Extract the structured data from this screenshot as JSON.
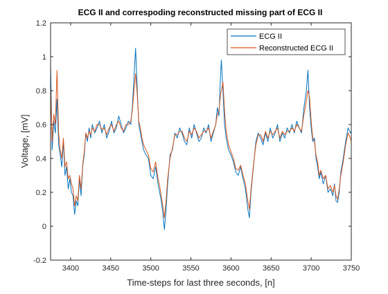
{
  "chart_data": {
    "type": "line",
    "title": "ECG II and correspoding reconstructed missing part of ECG II",
    "xlabel": "Time-steps for last three seconds, [n]",
    "ylabel": "Voltage, [mV]",
    "xlim": [
      3375,
      3750
    ],
    "ylim": [
      -0.2,
      1.2
    ],
    "xticks": [
      3400,
      3450,
      3500,
      3550,
      3600,
      3650,
      3700,
      3750
    ],
    "yticks": [
      -0.2,
      0,
      0.2,
      0.4,
      0.6,
      0.8,
      1,
      1.2
    ],
    "xtick_labels": [
      "3400",
      "3450",
      "3500",
      "3550",
      "3600",
      "3650",
      "3700",
      "3750"
    ],
    "ytick_labels": [
      "-0.2",
      "0",
      "0.2",
      "0.4",
      "0.6",
      "0.8",
      "1",
      "1.2"
    ],
    "grid": false,
    "legend_position": "top-right",
    "series": [
      {
        "name": "ECG II",
        "color": "#0072BD",
        "x": [
          3375,
          3377,
          3379,
          3381,
          3383,
          3385,
          3387,
          3389,
          3391,
          3393,
          3395,
          3397,
          3399,
          3401,
          3403,
          3405,
          3407,
          3409,
          3411,
          3413,
          3415,
          3417,
          3419,
          3421,
          3423,
          3425,
          3427,
          3430,
          3433,
          3436,
          3439,
          3442,
          3445,
          3448,
          3451,
          3454,
          3457,
          3460,
          3463,
          3466,
          3469,
          3472,
          3475,
          3477,
          3479,
          3481,
          3483,
          3485,
          3487,
          3489,
          3491,
          3494,
          3497,
          3500,
          3503,
          3506,
          3509,
          3511,
          3513,
          3515,
          3517,
          3519,
          3521,
          3524,
          3527,
          3530,
          3533,
          3536,
          3539,
          3542,
          3545,
          3548,
          3551,
          3554,
          3557,
          3560,
          3563,
          3566,
          3569,
          3572,
          3575,
          3578,
          3581,
          3583,
          3585,
          3587,
          3588,
          3590,
          3592,
          3594,
          3597,
          3600,
          3603,
          3606,
          3609,
          3612,
          3615,
          3618,
          3621,
          3623,
          3625,
          3628,
          3631,
          3634,
          3637,
          3640,
          3643,
          3646,
          3649,
          3652,
          3655,
          3658,
          3661,
          3664,
          3667,
          3670,
          3673,
          3676,
          3679,
          3682,
          3685,
          3688,
          3691,
          3694,
          3696,
          3698,
          3700,
          3702,
          3704,
          3706,
          3708,
          3710,
          3712,
          3715,
          3718,
          3721,
          3724,
          3727,
          3729,
          3731,
          3733,
          3735,
          3737,
          3740,
          3743,
          3746,
          3749,
          3750
        ],
        "y": [
          0.95,
          0.45,
          0.62,
          0.55,
          0.75,
          0.48,
          0.42,
          0.35,
          0.5,
          0.3,
          0.35,
          0.22,
          0.28,
          0.2,
          0.18,
          0.07,
          0.15,
          0.12,
          0.28,
          0.18,
          0.35,
          0.42,
          0.55,
          0.5,
          0.58,
          0.52,
          0.6,
          0.55,
          0.58,
          0.62,
          0.55,
          0.6,
          0.52,
          0.56,
          0.62,
          0.55,
          0.58,
          0.65,
          0.6,
          0.55,
          0.58,
          0.62,
          0.6,
          0.7,
          0.88,
          1.05,
          0.82,
          0.6,
          0.55,
          0.5,
          0.45,
          0.42,
          0.4,
          0.3,
          0.28,
          0.35,
          0.25,
          0.2,
          0.15,
          0.08,
          -0.02,
          0.1,
          0.25,
          0.42,
          0.45,
          0.55,
          0.52,
          0.58,
          0.55,
          0.5,
          0.48,
          0.58,
          0.52,
          0.6,
          0.55,
          0.5,
          0.52,
          0.58,
          0.55,
          0.6,
          0.5,
          0.55,
          0.6,
          0.7,
          0.65,
          0.9,
          0.98,
          0.8,
          0.6,
          0.52,
          0.45,
          0.42,
          0.38,
          0.32,
          0.3,
          0.35,
          0.28,
          0.22,
          0.1,
          0.05,
          0.2,
          0.35,
          0.5,
          0.55,
          0.52,
          0.48,
          0.55,
          0.5,
          0.58,
          0.52,
          0.55,
          0.6,
          0.5,
          0.55,
          0.52,
          0.58,
          0.55,
          0.6,
          0.55,
          0.62,
          0.58,
          0.55,
          0.7,
          0.8,
          0.92,
          0.7,
          0.58,
          0.5,
          0.52,
          0.4,
          0.35,
          0.28,
          0.32,
          0.25,
          0.3,
          0.2,
          0.22,
          0.18,
          0.25,
          0.15,
          0.14,
          0.2,
          0.32,
          0.4,
          0.5,
          0.58,
          0.55,
          0.56
        ]
      },
      {
        "name": "Reconstructed ECG II",
        "color": "#D95319",
        "x": [
          3375,
          3377,
          3379,
          3381,
          3383,
          3385,
          3387,
          3389,
          3391,
          3393,
          3395,
          3397,
          3399,
          3401,
          3403,
          3405,
          3407,
          3409,
          3411,
          3413,
          3415,
          3417,
          3419,
          3421,
          3423,
          3425,
          3427,
          3430,
          3433,
          3436,
          3439,
          3442,
          3445,
          3448,
          3451,
          3454,
          3457,
          3460,
          3463,
          3466,
          3469,
          3472,
          3475,
          3477,
          3479,
          3481,
          3483,
          3485,
          3487,
          3489,
          3491,
          3494,
          3497,
          3500,
          3503,
          3506,
          3509,
          3511,
          3513,
          3515,
          3517,
          3519,
          3521,
          3524,
          3527,
          3530,
          3533,
          3536,
          3539,
          3542,
          3545,
          3548,
          3551,
          3554,
          3557,
          3560,
          3563,
          3566,
          3569,
          3572,
          3575,
          3578,
          3581,
          3583,
          3585,
          3587,
          3588,
          3590,
          3592,
          3594,
          3597,
          3600,
          3603,
          3606,
          3609,
          3612,
          3615,
          3618,
          3621,
          3623,
          3625,
          3628,
          3631,
          3634,
          3637,
          3640,
          3643,
          3646,
          3649,
          3652,
          3655,
          3658,
          3661,
          3664,
          3667,
          3670,
          3673,
          3676,
          3679,
          3682,
          3685,
          3688,
          3691,
          3694,
          3696,
          3698,
          3700,
          3702,
          3704,
          3706,
          3708,
          3710,
          3712,
          3715,
          3718,
          3721,
          3724,
          3727,
          3729,
          3731,
          3733,
          3735,
          3737,
          3740,
          3743,
          3746,
          3749,
          3750
        ],
        "y": [
          0.82,
          0.5,
          0.66,
          0.6,
          0.92,
          0.55,
          0.45,
          0.4,
          0.52,
          0.35,
          0.38,
          0.28,
          0.3,
          0.25,
          0.22,
          0.12,
          0.18,
          0.15,
          0.3,
          0.22,
          0.36,
          0.44,
          0.55,
          0.52,
          0.56,
          0.54,
          0.58,
          0.56,
          0.6,
          0.6,
          0.57,
          0.58,
          0.54,
          0.58,
          0.6,
          0.56,
          0.6,
          0.62,
          0.58,
          0.56,
          0.6,
          0.6,
          0.62,
          0.68,
          0.8,
          0.9,
          0.78,
          0.62,
          0.58,
          0.52,
          0.48,
          0.45,
          0.42,
          0.34,
          0.32,
          0.38,
          0.28,
          0.24,
          0.18,
          0.12,
          0.05,
          0.15,
          0.28,
          0.4,
          0.46,
          0.54,
          0.54,
          0.56,
          0.56,
          0.52,
          0.5,
          0.56,
          0.54,
          0.58,
          0.56,
          0.52,
          0.54,
          0.56,
          0.56,
          0.58,
          0.52,
          0.56,
          0.6,
          0.66,
          0.68,
          0.78,
          0.8,
          0.85,
          0.68,
          0.56,
          0.48,
          0.44,
          0.4,
          0.34,
          0.33,
          0.36,
          0.3,
          0.25,
          0.15,
          0.1,
          0.22,
          0.36,
          0.48,
          0.54,
          0.54,
          0.5,
          0.56,
          0.52,
          0.56,
          0.54,
          0.56,
          0.58,
          0.52,
          0.56,
          0.54,
          0.56,
          0.56,
          0.58,
          0.56,
          0.6,
          0.58,
          0.56,
          0.66,
          0.74,
          0.8,
          0.76,
          0.62,
          0.52,
          0.5,
          0.42,
          0.38,
          0.3,
          0.33,
          0.28,
          0.3,
          0.22,
          0.24,
          0.2,
          0.24,
          0.18,
          0.16,
          0.22,
          0.3,
          0.38,
          0.48,
          0.55,
          0.52,
          0.5
        ]
      }
    ]
  }
}
